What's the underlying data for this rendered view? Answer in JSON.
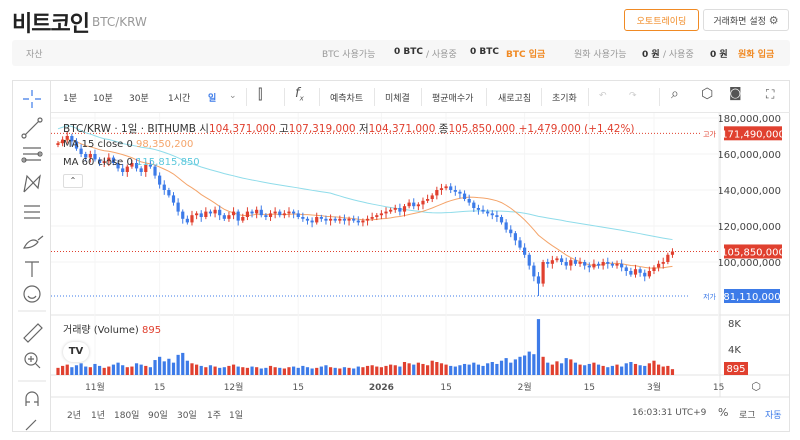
{
  "header": {
    "title": "비트코인",
    "pair": "BTC/KRW",
    "auto_trading": "오토트레이딩",
    "screen_settings": "거래화면 설정"
  },
  "asset": {
    "label": "자산",
    "btc_available": "BTC 사용가능",
    "btc_avail_val": "0 BTC",
    "slash1": "/ 사용중",
    "btc_used_val": "0 BTC",
    "btc_deposit": "BTC 입금",
    "krw_available": "원화 사용가능",
    "krw_avail_val": "0 원",
    "slash2": "/ 사용중",
    "krw_used_val": "0 원",
    "krw_deposit": "원화 입금"
  },
  "toolbar": {
    "intervals": [
      "1분",
      "10분",
      "30분",
      "1시간",
      "일"
    ],
    "selected": "일",
    "predict": "예측차트",
    "unfilled": "미체결",
    "avg_price": "평균매수가",
    "refresh": "새로고침",
    "reset": "초기화"
  },
  "legend": {
    "symbol": "BTC/KRW · 1일 · BITHUMB",
    "o_label": "시",
    "open": "104,371,000",
    "h_label": "고",
    "high": "107,319,000",
    "l_label": "저",
    "low": "104,371,000",
    "c_label": "종",
    "close": "105,850,000",
    "change": "+1,479,000 (+1.42%)",
    "ma15_label": "MA 15 close 0",
    "ma15_val": "98,350,200",
    "ma60_label": "MA 60 close 0",
    "ma60_val": "115,815,850",
    "volume_label": "거래량 (Volume)",
    "volume_val": "895"
  },
  "colors": {
    "up": "#e0402f",
    "down": "#3d7be8",
    "ma15": "#f4a46a",
    "ma60": "#8fdcea",
    "accent": "#f08a24"
  },
  "chart_data": {
    "type": "candlestick",
    "ylim": [
      75,
      185
    ],
    "y_unit": "백만원",
    "y_ticks": [
      "180,000,000",
      "160,000,000",
      "140,000,000",
      "120,000,000",
      "100,000,000"
    ],
    "x_ticks": [
      "11월",
      "15",
      "12월",
      "15",
      "2026",
      "15",
      "2월",
      "15",
      "3월",
      "15"
    ],
    "high_marker": {
      "label": "고가",
      "value": "171,490,000"
    },
    "low_marker": {
      "label": "저가",
      "value": "81,110,000"
    },
    "last_price": "105,850,000",
    "closes": [
      166,
      168,
      170,
      167,
      163,
      160,
      158,
      160,
      157,
      155,
      156,
      158,
      155,
      152,
      150,
      153,
      155,
      152,
      150,
      154,
      153,
      148,
      143,
      140,
      137,
      133,
      128,
      124,
      122,
      126,
      127,
      125,
      128,
      127,
      129,
      126,
      124,
      126,
      128,
      123,
      125,
      128,
      127,
      129,
      126,
      125,
      127,
      128,
      126,
      127,
      128,
      127,
      125,
      124,
      123,
      122,
      125,
      124,
      123,
      124,
      123,
      124,
      123,
      124,
      123,
      122,
      123,
      124,
      125,
      126,
      127,
      128,
      129,
      130,
      128,
      131,
      133,
      131,
      132,
      134,
      135,
      137,
      140,
      141,
      142,
      140,
      139,
      138,
      135,
      133,
      130,
      129,
      128,
      127,
      126,
      125,
      122,
      118,
      116,
      112,
      108,
      104,
      98,
      92,
      88,
      100,
      99,
      101,
      102,
      100,
      98,
      101,
      99,
      100,
      98,
      97,
      99,
      98,
      100,
      99,
      98,
      99,
      97,
      95,
      93,
      96,
      94,
      92,
      95,
      97,
      99,
      100,
      104,
      105.85
    ],
    "volume_ticks": [
      "8K",
      "4K"
    ],
    "volume_last": "895",
    "volumes": [
      1.1,
      1.4,
      1.6,
      1.2,
      1.5,
      1.8,
      1.3,
      1.2,
      1.7,
      1.4,
      1.1,
      1.3,
      1.6,
      1.9,
      1.5,
      1.2,
      1.3,
      1.8,
      1.6,
      1.4,
      1.2,
      2.3,
      2.8,
      2.1,
      2.5,
      1.9,
      3.1,
      3.4,
      2.2,
      1.8,
      1.6,
      1.4,
      1.2,
      1.5,
      1.3,
      1.1,
      1.2,
      1.4,
      1.6,
      1.3,
      1.2,
      1.1,
      1.3,
      1.2,
      1.0,
      1.1,
      1.4,
      1.2,
      1.1,
      1.0,
      1.2,
      1.3,
      1.1,
      1.4,
      1.2,
      1.0,
      1.1,
      1.3,
      1.5,
      1.2,
      1.1,
      1.0,
      1.2,
      1.1,
      1.0,
      1.3,
      1.2,
      1.4,
      1.5,
      1.3,
      1.2,
      1.4,
      1.6,
      1.5,
      1.3,
      2.0,
      1.8,
      1.6,
      1.9,
      1.7,
      1.5,
      2.2,
      2.0,
      1.8,
      1.6,
      1.4,
      1.3,
      1.5,
      1.7,
      1.6,
      1.9,
      1.6,
      1.4,
      1.8,
      2.0,
      1.7,
      2.2,
      2.6,
      1.9,
      2.4,
      2.8,
      3.0,
      3.6,
      3.2,
      8.6,
      2.8,
      1.9,
      1.6,
      2.1,
      1.8,
      2.6,
      2.4,
      1.9,
      1.6,
      1.5,
      1.7,
      1.9,
      1.6,
      1.4,
      1.2,
      1.4,
      1.6,
      1.3,
      1.8,
      2.0,
      1.7,
      1.5,
      1.4,
      1.8,
      2.2,
      1.6,
      1.3,
      1.4,
      0.9
    ]
  },
  "bottom": {
    "ranges": [
      "2년",
      "1년",
      "180일",
      "90일",
      "30일",
      "1주",
      "1일"
    ],
    "time": "16:03:31 UTC+9",
    "percent": "%",
    "log": "로그",
    "auto": "자동"
  }
}
